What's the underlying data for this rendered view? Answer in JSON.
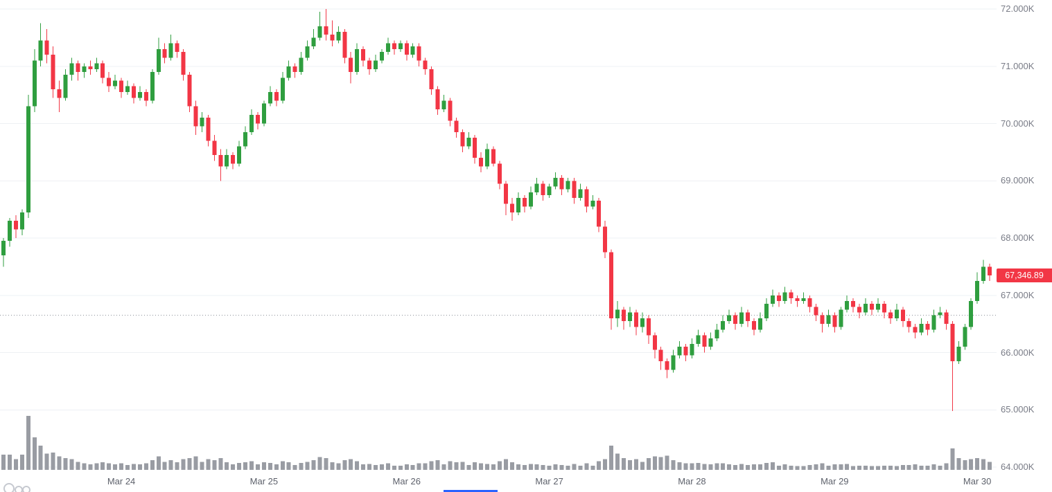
{
  "chart_data": {
    "type": "candlestick",
    "last_price": 67346.89,
    "last_price_label": "67,346.89",
    "ylim": [
      64000,
      72000
    ],
    "dotted_level": 66650,
    "grid": "horizontal",
    "legend": "none",
    "fields": [
      "open",
      "high",
      "low",
      "close",
      "volume_relative"
    ],
    "price_axis_labels": [
      {
        "value": 72000,
        "label": "72.000K"
      },
      {
        "value": 71000,
        "label": "71.000K"
      },
      {
        "value": 70000,
        "label": "70.000K"
      },
      {
        "value": 69000,
        "label": "69.000K"
      },
      {
        "value": 68000,
        "label": "68.000K"
      },
      {
        "value": 67000,
        "label": "67.000K"
      },
      {
        "value": 66000,
        "label": "66.000K"
      },
      {
        "value": 65000,
        "label": "65.000K"
      },
      {
        "value": 64000,
        "label": "64.000K"
      }
    ],
    "time_ticks": [
      {
        "index": 19,
        "label": "Mar 24"
      },
      {
        "index": 42,
        "label": "Mar 25"
      },
      {
        "index": 65,
        "label": "Mar 26"
      },
      {
        "index": 88,
        "label": "Mar 27"
      },
      {
        "index": 111,
        "label": "Mar 28"
      },
      {
        "index": 134,
        "label": "Mar 29"
      },
      {
        "index": 157,
        "label": "Mar 30"
      }
    ],
    "colors": {
      "up": "#2f9e3f",
      "down": "#f23645",
      "volume": "#999ca3",
      "grid": "#eef0f4",
      "dotted": "#8b8f99",
      "axis_text": "#787b86",
      "time_text": "#5d616b",
      "tag_bg": "#f23645",
      "tag_text": "#ffffff",
      "accent_blue": "#2962ff",
      "logo_gray": "#c6c9d0"
    },
    "volume_max_rel": 100,
    "candles": [
      [
        67700,
        68000,
        67500,
        67950,
        28
      ],
      [
        67950,
        68350,
        67850,
        68300,
        28
      ],
      [
        68300,
        68400,
        68000,
        68150,
        20
      ],
      [
        68150,
        68500,
        68050,
        68450,
        28
      ],
      [
        68450,
        70500,
        68350,
        70300,
        100
      ],
      [
        70300,
        71300,
        70200,
        71100,
        60
      ],
      [
        71100,
        71750,
        71000,
        71450,
        45
      ],
      [
        71450,
        71650,
        71050,
        71200,
        30
      ],
      [
        71200,
        71350,
        70450,
        70600,
        32
      ],
      [
        70600,
        70750,
        70200,
        70450,
        25
      ],
      [
        70450,
        70950,
        70400,
        70850,
        22
      ],
      [
        70850,
        71150,
        70750,
        71050,
        20
      ],
      [
        71050,
        71100,
        70750,
        70900,
        15
      ],
      [
        70900,
        71050,
        70800,
        71000,
        12
      ],
      [
        71000,
        71100,
        70850,
        70950,
        10
      ],
      [
        70950,
        71150,
        70900,
        71050,
        12
      ],
      [
        71050,
        71100,
        70700,
        70800,
        14
      ],
      [
        70800,
        70900,
        70550,
        70650,
        12
      ],
      [
        70650,
        70850,
        70600,
        70750,
        10
      ],
      [
        70750,
        70800,
        70450,
        70550,
        12
      ],
      [
        70550,
        70750,
        70500,
        70650,
        9
      ],
      [
        70650,
        70700,
        70350,
        70450,
        11
      ],
      [
        70450,
        70650,
        70400,
        70550,
        10
      ],
      [
        70550,
        70600,
        70300,
        70400,
        12
      ],
      [
        70400,
        70950,
        70350,
        70900,
        18
      ],
      [
        70900,
        71500,
        70850,
        71300,
        25
      ],
      [
        71300,
        71400,
        71050,
        71150,
        15
      ],
      [
        71150,
        71550,
        71100,
        71400,
        18
      ],
      [
        71400,
        71450,
        71150,
        71250,
        14
      ],
      [
        71250,
        71300,
        70750,
        70850,
        20
      ],
      [
        70850,
        70900,
        70200,
        70300,
        22
      ],
      [
        70300,
        70400,
        69800,
        69950,
        25
      ],
      [
        69950,
        70200,
        69850,
        70100,
        15
      ],
      [
        70100,
        70150,
        69600,
        69700,
        20
      ],
      [
        69700,
        69800,
        69350,
        69450,
        18
      ],
      [
        69450,
        69550,
        69000,
        69250,
        22
      ],
      [
        69250,
        69550,
        69200,
        69450,
        14
      ],
      [
        69450,
        69500,
        69200,
        69300,
        10
      ],
      [
        69300,
        69700,
        69250,
        69600,
        13
      ],
      [
        69600,
        69950,
        69550,
        69850,
        14
      ],
      [
        69850,
        70250,
        69800,
        70150,
        16
      ],
      [
        70150,
        70200,
        69900,
        70000,
        10
      ],
      [
        70000,
        70400,
        69950,
        70350,
        14
      ],
      [
        70350,
        70650,
        70300,
        70550,
        13
      ],
      [
        70550,
        70600,
        70300,
        70400,
        10
      ],
      [
        70400,
        70900,
        70350,
        70800,
        16
      ],
      [
        70800,
        71100,
        70750,
        71000,
        14
      ],
      [
        71000,
        71050,
        70800,
        70900,
        9
      ],
      [
        70900,
        71250,
        70850,
        71150,
        13
      ],
      [
        71150,
        71450,
        71100,
        71350,
        15
      ],
      [
        71350,
        71650,
        71300,
        71500,
        18
      ],
      [
        71500,
        71950,
        71450,
        71700,
        24
      ],
      [
        71700,
        72000,
        71450,
        71550,
        22
      ],
      [
        71550,
        71800,
        71350,
        71450,
        14
      ],
      [
        71450,
        71700,
        71400,
        71600,
        12
      ],
      [
        71600,
        71650,
        71050,
        71150,
        18
      ],
      [
        71150,
        71250,
        70700,
        70900,
        20
      ],
      [
        70900,
        71400,
        70850,
        71300,
        16
      ],
      [
        71300,
        71350,
        71000,
        71100,
        10
      ],
      [
        71100,
        71150,
        70850,
        70950,
        11
      ],
      [
        70950,
        71200,
        70900,
        71100,
        9
      ],
      [
        71100,
        71300,
        71050,
        71250,
        10
      ],
      [
        71250,
        71500,
        71200,
        71400,
        12
      ],
      [
        71400,
        71450,
        71200,
        71300,
        8
      ],
      [
        71300,
        71450,
        71250,
        71400,
        8
      ],
      [
        71400,
        71450,
        71100,
        71200,
        10
      ],
      [
        71200,
        71400,
        71150,
        71350,
        9
      ],
      [
        71350,
        71400,
        71000,
        71100,
        12
      ],
      [
        71100,
        71150,
        70850,
        70950,
        12
      ],
      [
        70950,
        71000,
        70500,
        70600,
        16
      ],
      [
        70600,
        70650,
        70150,
        70250,
        18
      ],
      [
        70250,
        70500,
        70200,
        70400,
        10
      ],
      [
        70400,
        70450,
        69950,
        70050,
        16
      ],
      [
        70050,
        70100,
        69750,
        69850,
        14
      ],
      [
        69850,
        69900,
        69500,
        69600,
        15
      ],
      [
        69600,
        69850,
        69550,
        69750,
        9
      ],
      [
        69750,
        69800,
        69300,
        69400,
        14
      ],
      [
        69400,
        69500,
        69150,
        69250,
        12
      ],
      [
        69250,
        69650,
        69200,
        69550,
        11
      ],
      [
        69550,
        69600,
        69250,
        69300,
        10
      ],
      [
        69300,
        69350,
        68850,
        68950,
        16
      ],
      [
        68950,
        69000,
        68400,
        68600,
        20
      ],
      [
        68600,
        68700,
        68300,
        68450,
        14
      ],
      [
        68450,
        68800,
        68400,
        68700,
        10
      ],
      [
        68700,
        68750,
        68450,
        68550,
        9
      ],
      [
        68550,
        68900,
        68500,
        68800,
        11
      ],
      [
        68800,
        69050,
        68750,
        68950,
        10
      ],
      [
        68950,
        69000,
        68650,
        68750,
        9
      ],
      [
        68750,
        68950,
        68700,
        68900,
        8
      ],
      [
        68900,
        69150,
        68850,
        69050,
        10
      ],
      [
        69050,
        69100,
        68750,
        68850,
        9
      ],
      [
        68850,
        69050,
        68800,
        69000,
        8
      ],
      [
        69000,
        69050,
        68600,
        68700,
        11
      ],
      [
        68700,
        68950,
        68650,
        68850,
        8
      ],
      [
        68850,
        68900,
        68450,
        68550,
        12
      ],
      [
        68550,
        68750,
        68500,
        68650,
        8
      ],
      [
        68650,
        68700,
        68100,
        68200,
        16
      ],
      [
        68200,
        68300,
        67650,
        67750,
        20
      ],
      [
        67750,
        67800,
        66400,
        66600,
        45
      ],
      [
        66600,
        66900,
        66450,
        66750,
        30
      ],
      [
        66750,
        66800,
        66400,
        66550,
        22
      ],
      [
        66550,
        66800,
        66450,
        66700,
        18
      ],
      [
        66700,
        66750,
        66300,
        66450,
        20
      ],
      [
        66450,
        66700,
        66350,
        66600,
        15
      ],
      [
        66600,
        66650,
        66150,
        66300,
        22
      ],
      [
        66300,
        66350,
        65900,
        66050,
        25
      ],
      [
        66050,
        66100,
        65700,
        65850,
        24
      ],
      [
        65850,
        65900,
        65550,
        65700,
        26
      ],
      [
        65700,
        66050,
        65650,
        65950,
        18
      ],
      [
        65950,
        66200,
        65900,
        66100,
        14
      ],
      [
        66100,
        66150,
        65850,
        65950,
        12
      ],
      [
        65950,
        66250,
        65900,
        66150,
        12
      ],
      [
        66150,
        66400,
        66100,
        66300,
        13
      ],
      [
        66300,
        66350,
        66000,
        66100,
        11
      ],
      [
        66100,
        66350,
        66050,
        66250,
        10
      ],
      [
        66250,
        66500,
        66200,
        66400,
        12
      ],
      [
        66400,
        66650,
        66350,
        66550,
        12
      ],
      [
        66550,
        66750,
        66500,
        66650,
        10
      ],
      [
        66650,
        66700,
        66400,
        66500,
        9
      ],
      [
        66500,
        66800,
        66450,
        66700,
        11
      ],
      [
        66700,
        66750,
        66450,
        66550,
        9
      ],
      [
        66550,
        66600,
        66300,
        66400,
        10
      ],
      [
        66400,
        66700,
        66350,
        66600,
        10
      ],
      [
        66600,
        66950,
        66550,
        66850,
        13
      ],
      [
        66850,
        67100,
        66800,
        67000,
        14
      ],
      [
        67000,
        67050,
        66800,
        66900,
        8
      ],
      [
        66900,
        67150,
        66850,
        67050,
        10
      ],
      [
        67050,
        67100,
        66850,
        66950,
        8
      ],
      [
        66950,
        67000,
        66800,
        66900,
        7
      ],
      [
        66900,
        67050,
        66850,
        66950,
        7
      ],
      [
        66950,
        67000,
        66700,
        66800,
        9
      ],
      [
        66800,
        66850,
        66550,
        66650,
        10
      ],
      [
        66650,
        66700,
        66350,
        66500,
        12
      ],
      [
        66500,
        66750,
        66450,
        66650,
        8
      ],
      [
        66650,
        66700,
        66350,
        66450,
        10
      ],
      [
        66450,
        66800,
        66400,
        66750,
        10
      ],
      [
        66750,
        67000,
        66700,
        66900,
        11
      ],
      [
        66900,
        66950,
        66700,
        66800,
        7
      ],
      [
        66800,
        66850,
        66600,
        66700,
        8
      ],
      [
        66700,
        66950,
        66650,
        66850,
        8
      ],
      [
        66850,
        66900,
        66650,
        66750,
        7
      ],
      [
        66750,
        66950,
        66700,
        66850,
        7
      ],
      [
        66850,
        66900,
        66600,
        66700,
        8
      ],
      [
        66700,
        66750,
        66500,
        66600,
        8
      ],
      [
        66600,
        66850,
        66550,
        66750,
        7
      ],
      [
        66750,
        66800,
        66450,
        66550,
        9
      ],
      [
        66550,
        66600,
        66350,
        66450,
        9
      ],
      [
        66450,
        66500,
        66250,
        66350,
        10
      ],
      [
        66350,
        66600,
        66300,
        66500,
        8
      ],
      [
        66500,
        66550,
        66300,
        66400,
        8
      ],
      [
        66400,
        66750,
        66350,
        66650,
        10
      ],
      [
        66650,
        66800,
        66600,
        66700,
        8
      ],
      [
        66700,
        66750,
        66400,
        66500,
        12
      ],
      [
        66500,
        66550,
        64980,
        65850,
        40
      ],
      [
        65850,
        66200,
        65800,
        66100,
        22
      ],
      [
        66100,
        66500,
        66050,
        66450,
        18
      ],
      [
        66450,
        66950,
        66400,
        66900,
        20
      ],
      [
        66900,
        67400,
        66850,
        67250,
        22
      ],
      [
        67250,
        67620,
        67200,
        67500,
        20
      ],
      [
        67500,
        67550,
        67250,
        67346.89,
        15
      ]
    ]
  }
}
